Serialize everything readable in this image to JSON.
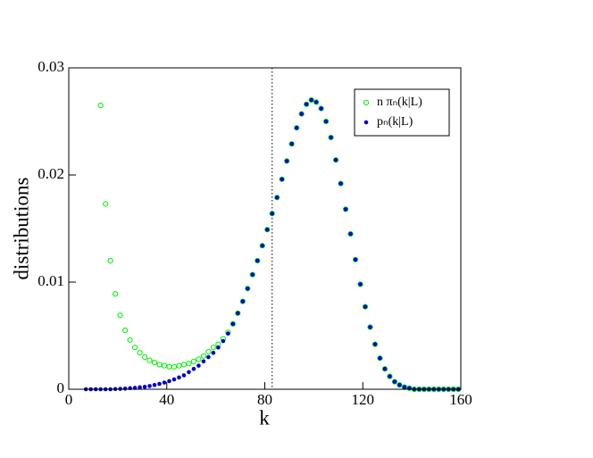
{
  "chart_data": {
    "type": "scatter",
    "xlabel": "k",
    "ylabel": "distributions",
    "xlim": [
      0,
      160
    ],
    "ylim": [
      0,
      0.03
    ],
    "xticks": [
      0,
      40,
      80,
      120,
      160
    ],
    "yticks": [
      0,
      0.01,
      0.02,
      0.03
    ],
    "vline": 83,
    "legend": "upper right",
    "x": [
      7,
      9,
      11,
      13,
      15,
      17,
      19,
      21,
      23,
      25,
      27,
      29,
      31,
      33,
      35,
      37,
      39,
      41,
      43,
      45,
      47,
      49,
      51,
      53,
      55,
      57,
      59,
      61,
      63,
      65,
      67,
      69,
      71,
      73,
      75,
      77,
      79,
      81,
      83,
      85,
      87,
      89,
      91,
      93,
      95,
      97,
      99,
      101,
      103,
      105,
      107,
      109,
      111,
      113,
      115,
      117,
      119,
      121,
      123,
      125,
      127,
      129,
      131,
      133,
      135,
      137,
      139,
      141,
      143,
      145,
      147,
      149,
      151,
      153,
      155,
      157,
      159
    ],
    "series": [
      {
        "name": "n πₙ(k|L)",
        "color": "#00ee00",
        "marker": "open",
        "values": [
          null,
          null,
          null,
          0.0265,
          0.0173,
          0.012,
          0.0089,
          0.0069,
          0.0055,
          0.0046,
          0.0039,
          0.0034,
          0.003,
          0.0027,
          0.0025,
          0.0023,
          0.0022,
          0.0021,
          0.0021,
          0.0022,
          0.0023,
          0.0024,
          0.0026,
          0.0028,
          0.0031,
          0.0035,
          0.0039,
          0.0042,
          0.0047,
          0.0053,
          0.0061,
          0.0071,
          0.0082,
          0.0094,
          0.0107,
          0.012,
          0.0134,
          0.0149,
          0.0164,
          0.0179,
          0.0196,
          0.0213,
          0.0229,
          0.0244,
          0.0257,
          0.0266,
          0.027,
          0.0268,
          0.0262,
          0.025,
          0.0235,
          0.0214,
          0.0192,
          0.0168,
          0.0145,
          0.0121,
          0.0098,
          0.0077,
          0.0058,
          0.0042,
          0.0029,
          0.0019,
          0.0012,
          0.0007,
          0.0004,
          0.0002,
          0.0001,
          0,
          0,
          0,
          0,
          0,
          0,
          0,
          0,
          0,
          0
        ]
      },
      {
        "name": "pₙ(k|L)",
        "color": "#0000cc",
        "marker": "filled",
        "values": [
          0,
          0,
          0,
          0,
          0,
          0,
          2e-05,
          4e-05,
          6e-05,
          0.0001,
          0.00013,
          0.00018,
          0.00023,
          0.0003,
          0.0004,
          0.0005,
          0.00062,
          0.00076,
          0.00092,
          0.0011,
          0.0013,
          0.0016,
          0.0019,
          0.0022,
          0.0026,
          0.003,
          0.0034,
          0.0039,
          0.0045,
          0.0052,
          0.0061,
          0.0071,
          0.0082,
          0.0094,
          0.0107,
          0.012,
          0.0134,
          0.0149,
          0.0164,
          0.0179,
          0.0196,
          0.0213,
          0.0229,
          0.0244,
          0.0257,
          0.0266,
          0.027,
          0.0268,
          0.0262,
          0.025,
          0.0235,
          0.0214,
          0.0192,
          0.0168,
          0.0145,
          0.0121,
          0.0098,
          0.0077,
          0.0058,
          0.0042,
          0.0029,
          0.0019,
          0.0012,
          0.0007,
          0.0004,
          0.0002,
          0.0001,
          0,
          0,
          0,
          0,
          0,
          0,
          0,
          0,
          0,
          0
        ]
      }
    ]
  }
}
